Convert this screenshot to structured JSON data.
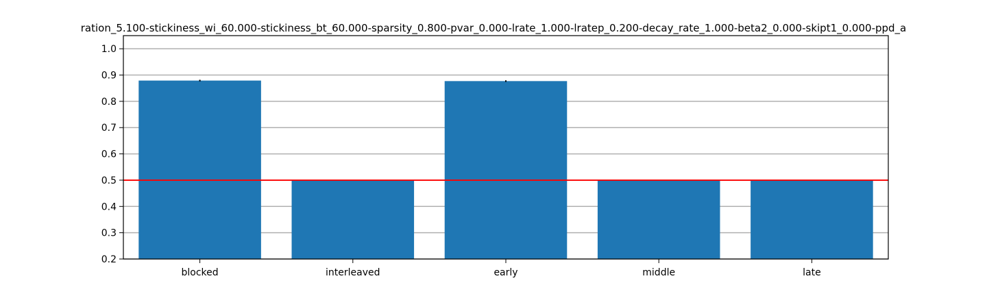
{
  "chart_data": {
    "type": "bar",
    "title": "ration_5.100-stickiness_wi_60.000-stickiness_bt_60.000-sparsity_0.800-pvar_0.000-lrate_1.000-lratep_0.200-decay_rate_1.000-beta2_0.000-skipt1_0.000-ppd_a",
    "categories": [
      "blocked",
      "interleaved",
      "early",
      "middle",
      "late"
    ],
    "values": [
      0.879,
      0.5,
      0.877,
      0.5,
      0.5
    ],
    "errors": [
      0.003,
      0.0,
      0.003,
      0.0,
      0.0
    ],
    "ylim": [
      0.2,
      1.05
    ],
    "yticks": [
      0.2,
      0.3,
      0.4,
      0.5,
      0.6,
      0.7,
      0.8,
      0.9,
      1.0
    ],
    "ytick_labels": [
      "0.2",
      "0.3",
      "0.4",
      "0.5",
      "0.6",
      "0.7",
      "0.8",
      "0.9",
      "1.0"
    ],
    "reference_line": 0.5,
    "grid": "y",
    "xlabel": "",
    "ylabel": "",
    "colors": {
      "bar": "#1f77b4",
      "reference_line": "#ff0000",
      "grid": "#b0b0b0",
      "error": "#000000",
      "axes": "#000000"
    }
  }
}
